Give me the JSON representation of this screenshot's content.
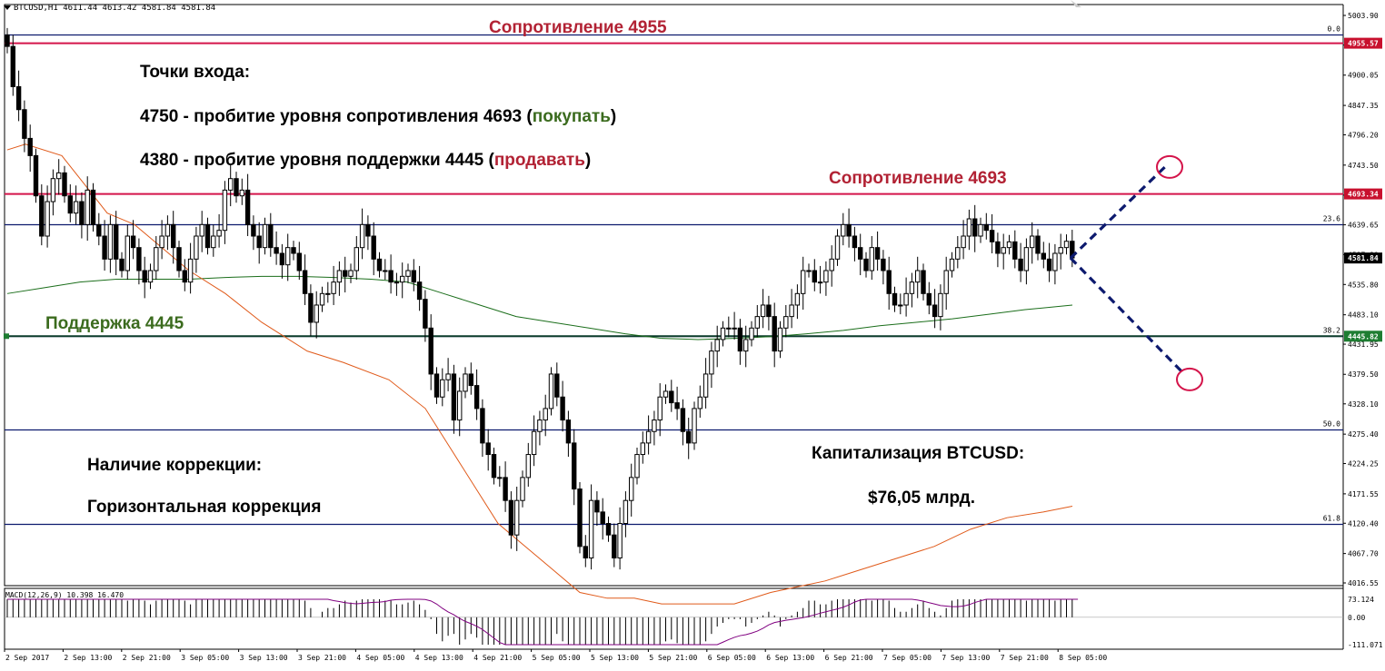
{
  "header": {
    "symbol": "BTCUSD,H1",
    "ohlc": "4611.44 4613.42 4581.84 4581.84"
  },
  "price_axis": {
    "ticks": [
      "5003.90",
      "4952.35",
      "4900.05",
      "4847.35",
      "4796.20",
      "4743.50",
      "4691.25",
      "4639.65",
      "4587.90",
      "4535.80",
      "4483.10",
      "4431.95",
      "4379.50",
      "4328.10",
      "4275.40",
      "4224.25",
      "4171.55",
      "4120.40",
      "4067.70",
      "4016.55"
    ],
    "badges": [
      {
        "price": 4955.57,
        "label": "4955.57",
        "color": "#c8102e",
        "text_color": "#ffffff"
      },
      {
        "price": 4693.34,
        "label": "4693.34",
        "color": "#c8102e",
        "text_color": "#ffffff"
      },
      {
        "price": 4581.84,
        "label": "4581.84",
        "color": "#000000",
        "text_color": "#ffffff"
      },
      {
        "price": 4445.82,
        "label": "4445.82",
        "color": "#1e7d32",
        "text_color": "#ffffff"
      }
    ]
  },
  "fib_levels": [
    {
      "label": "0.0",
      "price": 4970
    },
    {
      "label": "23.6",
      "price": 4640
    },
    {
      "label": "38.2",
      "price": 4446
    },
    {
      "label": "50.0",
      "price": 4284
    },
    {
      "label": "61.8",
      "price": 4120
    }
  ],
  "horizontal_lines": [
    {
      "price": 4955.57,
      "color": "#d4144a",
      "width": 2
    },
    {
      "price": 4693.34,
      "color": "#d4144a",
      "width": 2
    },
    {
      "price": 4445.82,
      "color": "#0a3b2a",
      "width": 2
    }
  ],
  "time_axis": [
    "2 Sep 2017",
    "2 Sep 13:00",
    "2 Sep 21:00",
    "3 Sep 05:00",
    "3 Sep 13:00",
    "3 Sep 21:00",
    "4 Sep 05:00",
    "4 Sep 13:00",
    "4 Sep 21:00",
    "5 Sep 05:00",
    "5 Sep 13:00",
    "5 Sep 21:00",
    "6 Sep 05:00",
    "6 Sep 13:00",
    "6 Sep 21:00",
    "7 Sep 05:00",
    "7 Sep 13:00",
    "7 Sep 21:00",
    "8 Sep 05:00"
  ],
  "annotations": {
    "res_high": "Сопротивление 4955",
    "res_mid": "Сопротивление 4693",
    "support": "Поддержка 4445",
    "entry_title": "Точки входа:",
    "entry_buy_text": "4750 - пробитие уровня сопротивления 4693 (",
    "entry_buy_word": "покупать",
    "entry_sell_text": "4380 - пробитие уровня поддержки 4445 (",
    "entry_sell_word": "продавать",
    "close_paren": ")",
    "correction_title": "Наличие коррекции:",
    "correction_value": "Горизонтальная коррекция",
    "cap_title": "Капитализация BTCUSD:",
    "cap_value": "$76,05 млрд."
  },
  "macd": {
    "label": "MACD(12,26,9) 10.398 16.470",
    "ticks": [
      "73.124",
      "0.00",
      "-111.071"
    ],
    "range": [
      -111.071,
      73.124
    ]
  },
  "colors": {
    "ma_fast": "#e05a1a",
    "ma_slow": "#1b6e1b",
    "fib": "#0d1a6e",
    "projection": "#0d1a6e",
    "target_circle": "#d4144a",
    "macd_signal": "#800080"
  },
  "chart_data": {
    "type": "candlestick",
    "title": "BTCUSD,H1",
    "ylim": [
      4000,
      5020
    ],
    "start_price": 4970,
    "candle_count": 186,
    "open_close_path": [
      4970,
      4950,
      4880,
      4840,
      4790,
      4760,
      4690,
      4620,
      4680,
      4720,
      4730,
      4690,
      4660,
      4680,
      4640,
      4700,
      4640,
      4620,
      4580,
      4640,
      4580,
      4560,
      4620,
      4600,
      4560,
      4540,
      4560,
      4600,
      4620,
      4640,
      4600,
      4560,
      4540,
      4580,
      4620,
      4640,
      4600,
      4620,
      4630,
      4700,
      4720,
      4690,
      4700,
      4640,
      4620,
      4600,
      4640,
      4600,
      4590,
      4570,
      4600,
      4590,
      4560,
      4520,
      4470,
      4500,
      4520,
      4520,
      4540,
      4560,
      4550,
      4560,
      4600,
      4640,
      4620,
      4580,
      4560,
      4560,
      4540,
      4540,
      4550,
      4560,
      4540,
      4510,
      4460,
      4380,
      4340,
      4370,
      4380,
      4300,
      4350,
      4380,
      4360,
      4320,
      4260,
      4240,
      4200,
      4200,
      4160,
      4100,
      4160,
      4200,
      4240,
      4280,
      4300,
      4320,
      4380,
      4340,
      4300,
      4260,
      4180,
      4080,
      4060,
      4160,
      4140,
      4120,
      4100,
      4060,
      4120,
      4160,
      4200,
      4240,
      4260,
      4280,
      4300,
      4340,
      4350,
      4330,
      4320,
      4280,
      4260,
      4320,
      4340,
      4380,
      4420,
      4440,
      4460,
      4460,
      4460,
      4420,
      4440,
      4460,
      4480,
      4500,
      4480,
      4420,
      4460,
      4480,
      4500,
      4520,
      4560,
      4560,
      4540,
      4540,
      4560,
      4580,
      4620,
      4640,
      4620,
      4600,
      4580,
      4560,
      4600,
      4580,
      4560,
      4520,
      4500,
      4500,
      4520,
      4540,
      4560,
      4520,
      4500,
      4480,
      4520,
      4560,
      4580,
      4600,
      4620,
      4650,
      4620,
      4640,
      4630,
      4610,
      4590,
      4600,
      4610,
      4580,
      4560,
      4600,
      4620,
      4590,
      4580,
      4560,
      4590,
      4600,
      4611,
      4582
    ],
    "ma_fast": [
      [
        0,
        4770
      ],
      [
        20,
        4780
      ],
      [
        60,
        4760
      ],
      [
        90,
        4700
      ],
      [
        110,
        4660
      ],
      [
        140,
        4640
      ],
      [
        170,
        4600
      ],
      [
        200,
        4560
      ],
      [
        240,
        4520
      ],
      [
        280,
        4470
      ],
      [
        330,
        4420
      ],
      [
        370,
        4400
      ],
      [
        420,
        4370
      ],
      [
        460,
        4320
      ],
      [
        500,
        4220
      ],
      [
        540,
        4120
      ],
      [
        570,
        4080
      ],
      [
        600,
        4040
      ],
      [
        630,
        4000
      ],
      [
        660,
        3990
      ],
      [
        690,
        3990
      ],
      [
        720,
        3980
      ],
      [
        760,
        3980
      ],
      [
        800,
        3980
      ],
      [
        840,
        4000
      ],
      [
        870,
        4010
      ],
      [
        900,
        4020
      ],
      [
        940,
        4040
      ],
      [
        980,
        4060
      ],
      [
        1020,
        4080
      ],
      [
        1060,
        4110
      ],
      [
        1100,
        4130
      ],
      [
        1140,
        4140
      ],
      [
        1172,
        4150
      ]
    ],
    "ma_slow": [
      [
        0,
        4520
      ],
      [
        40,
        4530
      ],
      [
        80,
        4540
      ],
      [
        120,
        4545
      ],
      [
        160,
        4545
      ],
      [
        200,
        4545
      ],
      [
        240,
        4548
      ],
      [
        280,
        4550
      ],
      [
        320,
        4550
      ],
      [
        360,
        4548
      ],
      [
        400,
        4545
      ],
      [
        440,
        4540
      ],
      [
        480,
        4520
      ],
      [
        520,
        4500
      ],
      [
        560,
        4480
      ],
      [
        600,
        4470
      ],
      [
        640,
        4460
      ],
      [
        680,
        4450
      ],
      [
        720,
        4442
      ],
      [
        760,
        4440
      ],
      [
        800,
        4442
      ],
      [
        840,
        4445
      ],
      [
        880,
        4450
      ],
      [
        920,
        4456
      ],
      [
        960,
        4464
      ],
      [
        1000,
        4470
      ],
      [
        1040,
        4476
      ],
      [
        1080,
        4484
      ],
      [
        1120,
        4492
      ],
      [
        1172,
        4500
      ]
    ]
  }
}
